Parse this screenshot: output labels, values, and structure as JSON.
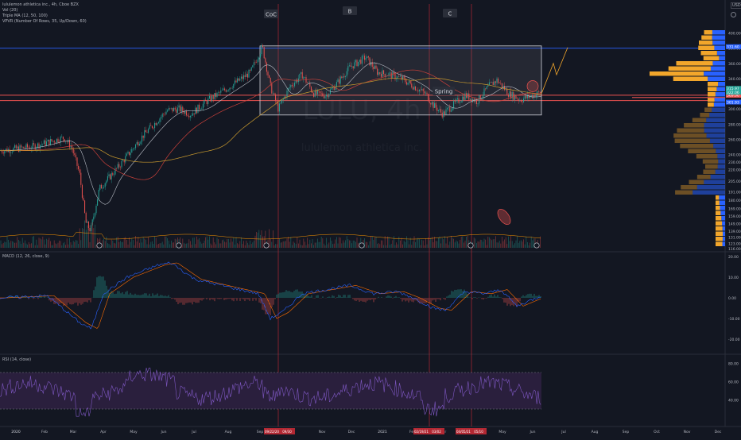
{
  "header": {
    "symbol_line": "lululemon athletica inc., 4h, Cboe BZX",
    "indicator_1": "Vol (20)",
    "indicator_2": "Triple MA (12, 50, 100)",
    "indicator_3": "VPVR (Number Of Rows, 35, Up/Down, 60)",
    "currency": "USD"
  },
  "watermark": {
    "ticker": "LULU, 4h",
    "name": "lululemon athletica inc."
  },
  "annotations": {
    "coc": "CoC",
    "b": "B",
    "c": "C",
    "spring": "Spring"
  },
  "macd": {
    "label": "MACD (12, 26, close, 9)"
  },
  "rsi": {
    "label": "RSI (14, close)"
  },
  "colors": {
    "background": "#131722",
    "up": "#26a69a",
    "down": "#ef5350",
    "ma_fast": "#b7bcc5",
    "ma_mid": "#c8403a",
    "ma_slow": "#c99a2e",
    "vp_up": "#2962ff",
    "vp_down": "#f2a62b",
    "macd_line": "#2962ff",
    "signal_line": "#ff6d00",
    "rsi_line": "#7e57c2",
    "rsi_band": "#2a1f3d",
    "resistance": "#2962ff",
    "support": "#ef5350"
  },
  "chart_data": [
    {
      "type": "line",
      "title": "lululemon athletica inc., 4h, Cboe BZX",
      "x_labels": [
        "2020",
        "Feb",
        "Mar",
        "Apr",
        "May",
        "Jun",
        "Jul",
        "Aug",
        "Sep",
        "Oct",
        "Nov",
        "Dec",
        "2021",
        "Feb",
        "Mar",
        "Apr",
        "May",
        "Jun",
        "Jul",
        "Aug",
        "Sep",
        "Oct",
        "Nov",
        "Dec"
      ],
      "y_ticks": [
        400,
        380,
        360,
        340,
        320,
        300,
        280,
        260,
        240,
        230,
        220,
        205,
        191,
        180,
        169,
        159,
        149,
        139,
        131,
        123,
        116
      ],
      "series": [
        {
          "x": [
            "2020",
            "Feb",
            "Mar",
            "Mar",
            "Apr",
            "May",
            "Jun",
            "Jul",
            "Aug",
            "Sep",
            "Oct",
            "Nov",
            "Dec",
            "2021",
            "Feb",
            "Mar",
            "Apr",
            "May",
            "Jun"
          ],
          "values": [
            245,
            252,
            232,
            150,
            225,
            280,
            320,
            330,
            345,
            380,
            310,
            325,
            350,
            335,
            320,
            300,
            315,
            325,
            322
          ]
        }
      ],
      "price_badges": [
        "331.60",
        "315.97",
        "309.00",
        "322.06",
        "301.93"
      ],
      "date_badges": [
        "09/22/20",
        "09/30",
        "02/19/21",
        "03/02",
        "04/05/21",
        "05/10"
      ]
    },
    {
      "type": "line",
      "title": "MACD (12, 26, close, 9)",
      "y_ticks": [
        "20.00",
        "10.00",
        "0.00",
        "-10.00",
        "-20.00"
      ],
      "ylim": [
        -20,
        20
      ],
      "series": [
        {
          "x": [
            "2020",
            "Mar",
            "Apr",
            "May",
            "Jun",
            "Jul",
            "Sep",
            "Oct",
            "Nov",
            "Dec",
            "2021",
            "Feb",
            "Mar",
            "Apr",
            "May",
            "Jun"
          ],
          "values": [
            0,
            -12,
            8,
            16,
            18,
            10,
            -6,
            2,
            5,
            3,
            6,
            2,
            -5,
            5,
            4,
            -2
          ]
        }
      ]
    },
    {
      "type": "line",
      "title": "RSI (14, close)",
      "y_ticks": [
        "80.00",
        "60.00",
        "40.00"
      ],
      "levels": [
        70,
        30
      ],
      "series": [
        {
          "x": [
            "2020",
            "Mar",
            "Apr",
            "May",
            "Jun",
            "Jul",
            "Sep",
            "Oct",
            "Nov",
            "Dec",
            "2021",
            "Feb",
            "Mar",
            "Apr",
            "May",
            "Jun"
          ],
          "values": [
            55,
            35,
            60,
            70,
            65,
            55,
            40,
            55,
            60,
            55,
            60,
            45,
            40,
            55,
            50,
            60
          ]
        }
      ]
    }
  ]
}
